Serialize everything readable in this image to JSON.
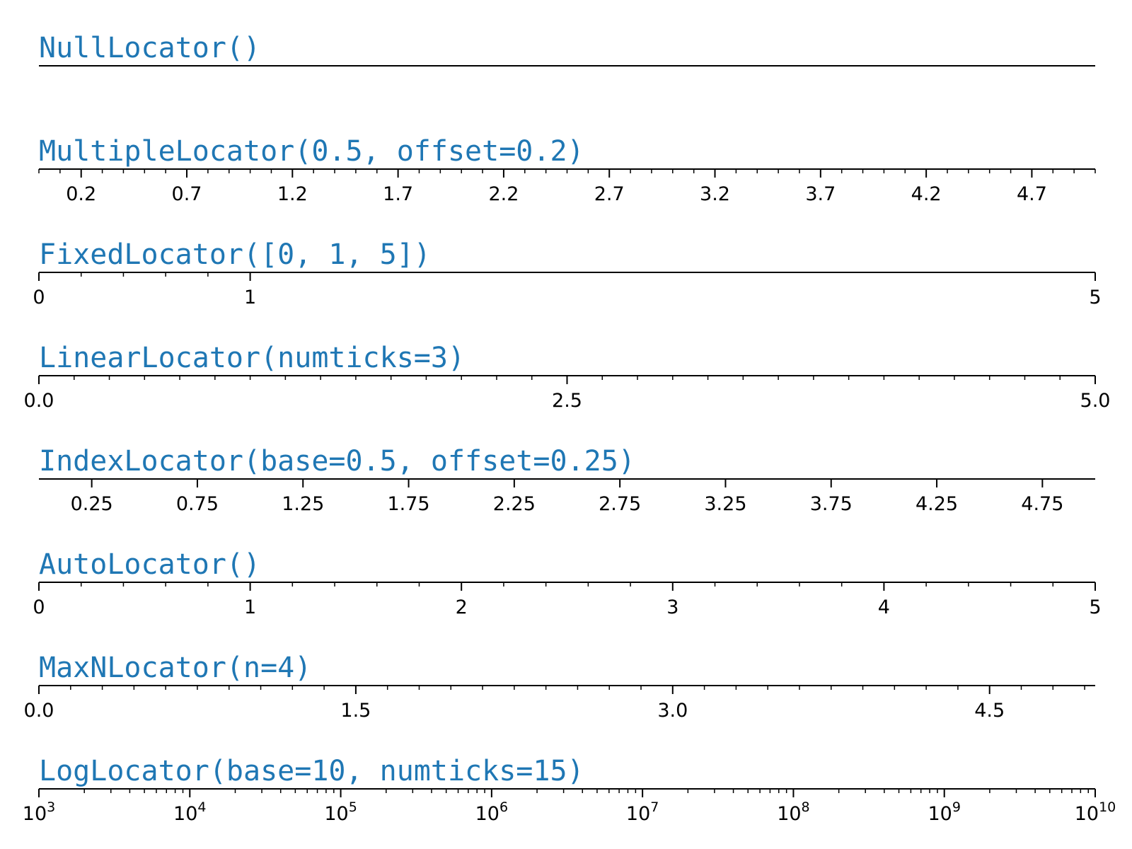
{
  "colors": {
    "title": "#1f77b4",
    "axis": "#000000"
  },
  "chart_data": [
    {
      "type": "axis",
      "title": "NullLocator()",
      "scale": "linear",
      "xlim": [
        0,
        5
      ],
      "major_ticks": [],
      "minor_ticks": [],
      "tick_labels": []
    },
    {
      "type": "axis",
      "title": "MultipleLocator(0.5, offset=0.2)",
      "scale": "linear",
      "xlim": [
        0,
        5
      ],
      "major_ticks": [
        0.2,
        0.7,
        1.2,
        1.7,
        2.2,
        2.7,
        3.2,
        3.7,
        4.2,
        4.7
      ],
      "minor_ticks": [
        0.0,
        0.1,
        0.3,
        0.4,
        0.5,
        0.6,
        0.8,
        0.9,
        1.0,
        1.1,
        1.3,
        1.4,
        1.5,
        1.6,
        1.8,
        1.9,
        2.0,
        2.1,
        2.3,
        2.4,
        2.5,
        2.6,
        2.8,
        2.9,
        3.0,
        3.1,
        3.3,
        3.4,
        3.5,
        3.6,
        3.8,
        3.9,
        4.0,
        4.1,
        4.3,
        4.4,
        4.5,
        4.6,
        4.8,
        4.9,
        5.0
      ],
      "tick_labels": [
        "0.2",
        "0.7",
        "1.2",
        "1.7",
        "2.2",
        "2.7",
        "3.2",
        "3.7",
        "4.2",
        "4.7"
      ]
    },
    {
      "type": "axis",
      "title": "FixedLocator([0, 1, 5])",
      "scale": "linear",
      "xlim": [
        0,
        5
      ],
      "major_ticks": [
        0,
        1,
        5
      ],
      "minor_ticks": [
        0.2,
        0.4,
        0.6,
        0.8
      ],
      "tick_labels": [
        "0",
        "1",
        "5"
      ]
    },
    {
      "type": "axis",
      "title": "LinearLocator(numticks=3)",
      "scale": "linear",
      "xlim": [
        0,
        5
      ],
      "major_ticks": [
        0,
        2.5,
        5
      ],
      "minor_ticks": [
        0.16667,
        0.33333,
        0.5,
        0.66667,
        0.83333,
        1.0,
        1.16667,
        1.33333,
        1.5,
        1.66667,
        1.83333,
        2.0,
        2.16667,
        2.33333,
        2.66667,
        2.83333,
        3.0,
        3.16667,
        3.33333,
        3.5,
        3.66667,
        3.83333,
        4.0,
        4.16667,
        4.33333,
        4.5,
        4.66667,
        4.83333
      ],
      "tick_labels": [
        "0.0",
        "2.5",
        "5.0"
      ]
    },
    {
      "type": "axis",
      "title": "IndexLocator(base=0.5, offset=0.25)",
      "scale": "linear",
      "xlim": [
        0,
        5
      ],
      "major_ticks": [
        0.25,
        0.75,
        1.25,
        1.75,
        2.25,
        2.75,
        3.25,
        3.75,
        4.25,
        4.75
      ],
      "minor_ticks": [],
      "tick_labels": [
        "0.25",
        "0.75",
        "1.25",
        "1.75",
        "2.25",
        "2.75",
        "3.25",
        "3.75",
        "4.25",
        "4.75"
      ]
    },
    {
      "type": "axis",
      "title": "AutoLocator()",
      "scale": "linear",
      "xlim": [
        0,
        5
      ],
      "major_ticks": [
        0,
        1,
        2,
        3,
        4,
        5
      ],
      "minor_ticks": [
        0.2,
        0.4,
        0.6,
        0.8,
        1.2,
        1.4,
        1.6,
        1.8,
        2.2,
        2.4,
        2.6,
        2.8,
        3.2,
        3.4,
        3.6,
        3.8,
        4.2,
        4.4,
        4.6,
        4.8
      ],
      "tick_labels": [
        "0",
        "1",
        "2",
        "3",
        "4",
        "5"
      ]
    },
    {
      "type": "axis",
      "title": "MaxNLocator(n=4)",
      "scale": "linear",
      "xlim": [
        0,
        5
      ],
      "major_ticks": [
        0,
        1.5,
        3.0,
        4.5
      ],
      "minor_ticks": [
        0.15,
        0.3,
        0.45,
        0.6,
        0.75,
        0.9,
        1.05,
        1.2,
        1.35,
        1.65,
        1.8,
        1.95,
        2.1,
        2.25,
        2.4,
        2.55,
        2.7,
        2.85,
        3.15,
        3.3,
        3.45,
        3.6,
        3.75,
        3.9,
        4.05,
        4.2,
        4.35,
        4.65,
        4.8,
        4.95
      ],
      "tick_labels": [
        "0.0",
        "1.5",
        "3.0",
        "4.5"
      ]
    },
    {
      "type": "axis",
      "title": "LogLocator(base=10, numticks=15)",
      "scale": "log",
      "xlim": [
        1000,
        10000000000
      ],
      "major_ticks": [
        1000,
        10000,
        100000,
        1000000,
        10000000,
        100000000,
        1000000000,
        10000000000
      ],
      "minor_subs": [
        2,
        3,
        4,
        5,
        6,
        7,
        8,
        9
      ],
      "tick_labels": [
        {
          "base": "10",
          "exp": "3"
        },
        {
          "base": "10",
          "exp": "4"
        },
        {
          "base": "10",
          "exp": "5"
        },
        {
          "base": "10",
          "exp": "6"
        },
        {
          "base": "10",
          "exp": "7"
        },
        {
          "base": "10",
          "exp": "8"
        },
        {
          "base": "10",
          "exp": "9"
        },
        {
          "base": "10",
          "exp": "10"
        }
      ]
    }
  ]
}
